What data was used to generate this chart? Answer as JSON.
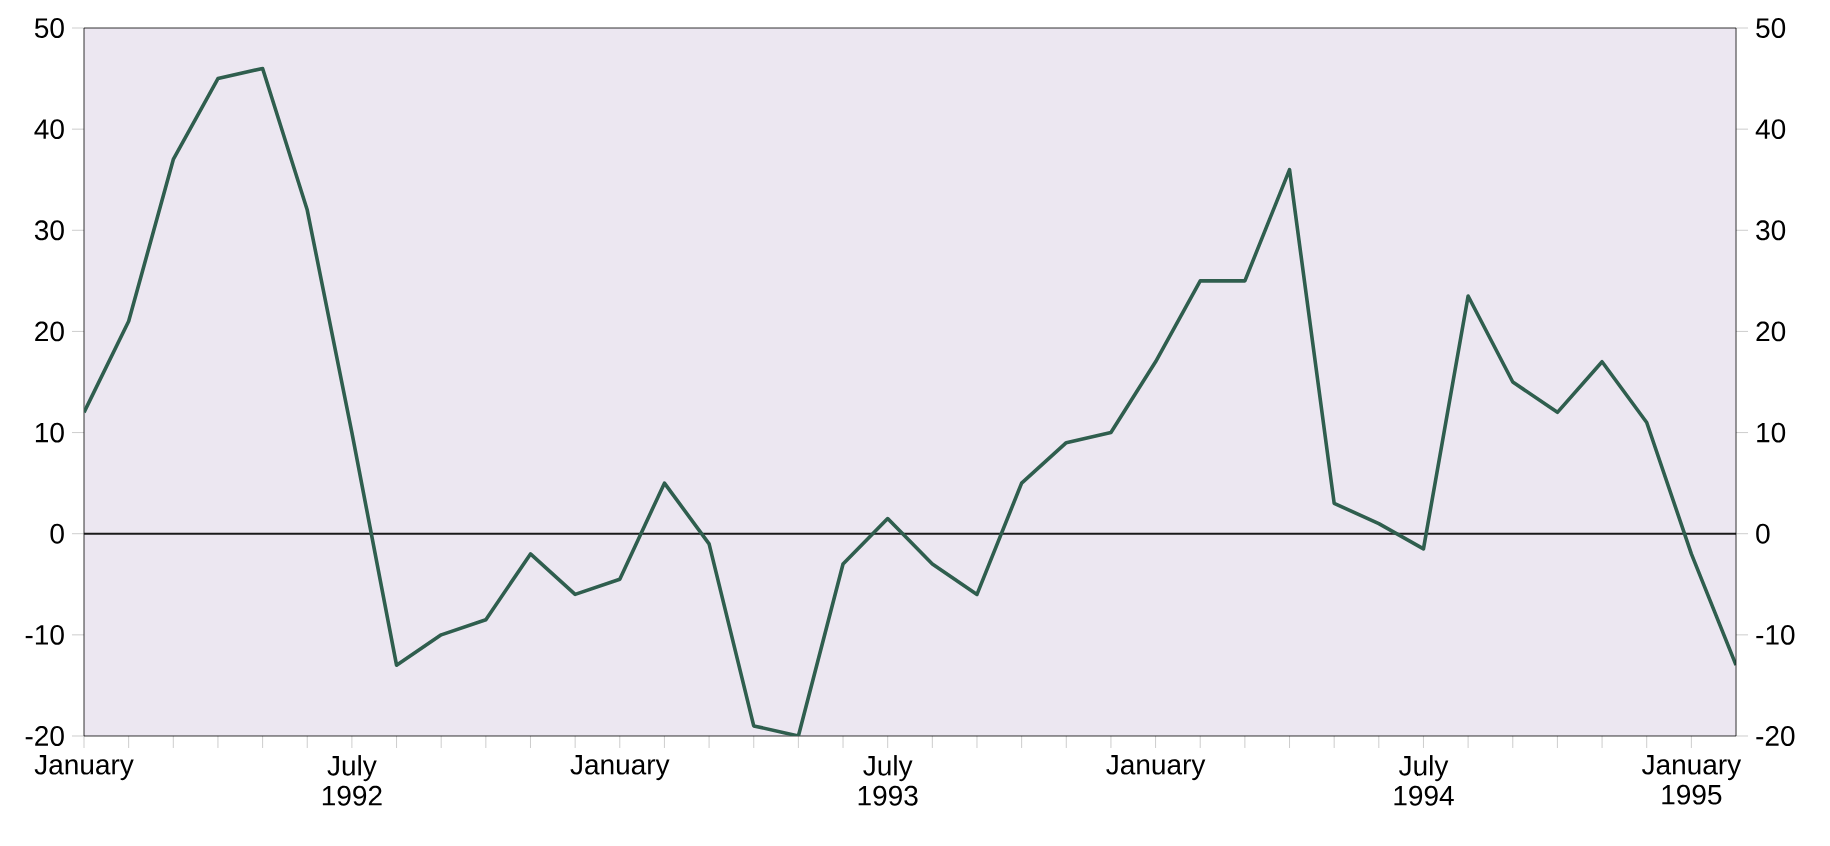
{
  "chart_data": {
    "type": "line",
    "x": [
      "1992-01",
      "1992-02",
      "1992-03",
      "1992-04",
      "1992-05",
      "1992-06",
      "1992-07",
      "1992-08",
      "1992-09",
      "1992-10",
      "1992-11",
      "1992-12",
      "1993-01",
      "1993-02",
      "1993-03",
      "1993-04",
      "1993-05",
      "1993-06",
      "1993-07",
      "1993-08",
      "1993-09",
      "1993-10",
      "1993-11",
      "1993-12",
      "1994-01",
      "1994-02",
      "1994-03",
      "1994-04",
      "1994-05",
      "1994-06",
      "1994-07",
      "1994-08",
      "1994-09",
      "1994-10",
      "1994-11",
      "1994-12",
      "1995-01",
      "1995-02"
    ],
    "series": [
      {
        "color": "#2f5e4e",
        "values": [
          12,
          21,
          37,
          45,
          46,
          32,
          10,
          -13,
          -10,
          -8.5,
          -2,
          -6,
          -4.5,
          5,
          -1,
          -19,
          -20,
          -3,
          1.5,
          -3,
          -6,
          5,
          9,
          10,
          17,
          25,
          25,
          36,
          3,
          1,
          -1.5,
          23.5,
          15,
          12,
          17,
          11,
          -2,
          -13
        ]
      }
    ],
    "xlim": [
      "1992-01",
      "1995-02"
    ],
    "xticks": [
      {
        "value": "1992-01",
        "label": "January"
      },
      {
        "value": "1992-02",
        "label": null
      },
      {
        "value": "1992-03",
        "label": null
      },
      {
        "value": "1992-04",
        "label": null
      },
      {
        "value": "1992-05",
        "label": null
      },
      {
        "value": "1992-06",
        "label": null
      },
      {
        "value": "1992-07",
        "label": "July 1992"
      },
      {
        "value": "1992-08",
        "label": null
      },
      {
        "value": "1992-09",
        "label": null
      },
      {
        "value": "1992-10",
        "label": null
      },
      {
        "value": "1992-11",
        "label": null
      },
      {
        "value": "1992-12",
        "label": null
      },
      {
        "value": "1993-01",
        "label": "January"
      },
      {
        "value": "1993-02",
        "label": null
      },
      {
        "value": "1993-03",
        "label": null
      },
      {
        "value": "1993-04",
        "label": null
      },
      {
        "value": "1993-05",
        "label": null
      },
      {
        "value": "1993-06",
        "label": null
      },
      {
        "value": "1993-07",
        "label": "July 1993"
      },
      {
        "value": "1993-08",
        "label": null
      },
      {
        "value": "1993-09",
        "label": null
      },
      {
        "value": "1993-10",
        "label": null
      },
      {
        "value": "1993-11",
        "label": null
      },
      {
        "value": "1993-12",
        "label": null
      },
      {
        "value": "1994-01",
        "label": "January"
      },
      {
        "value": "1994-02",
        "label": null
      },
      {
        "value": "1994-03",
        "label": null
      },
      {
        "value": "1994-04",
        "label": null
      },
      {
        "value": "1994-05",
        "label": null
      },
      {
        "value": "1994-06",
        "label": null
      },
      {
        "value": "1994-07",
        "label": "July 1994"
      },
      {
        "value": "1994-08",
        "label": null
      },
      {
        "value": "1994-09",
        "label": null
      },
      {
        "value": "1994-10",
        "label": null
      },
      {
        "value": "1994-11",
        "label": null
      },
      {
        "value": "1994-12",
        "label": null
      },
      {
        "value": "1995-01",
        "label": "January 1995"
      }
    ],
    "ylim": [
      -20,
      50
    ],
    "yticks": [
      -20,
      -10,
      0,
      10,
      20,
      30,
      40,
      50
    ],
    "y2lim": [
      -20,
      50
    ],
    "y2ticks": [
      -20,
      -10,
      0,
      10,
      20,
      30,
      40,
      50
    ],
    "ref_lines": [
      {
        "axis": "y",
        "value": 0,
        "color": "#1a1a1a"
      }
    ],
    "marker": "none",
    "line_style": "solid"
  }
}
